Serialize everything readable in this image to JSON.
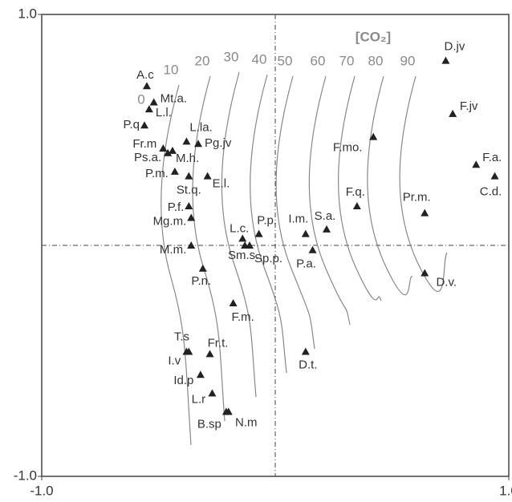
{
  "chart_data": {
    "type": "scatter",
    "marker": "triangle",
    "color": "#222222",
    "labels": [
      "A.c",
      "Mt.a.",
      "L.l.",
      "P.q",
      "Fr.m",
      "Ps.a.",
      "M.h.",
      "L.la.",
      "Pg.jv",
      "P.m.",
      "St.q.",
      "E.l.",
      "P.f.",
      "Mg.m.",
      "M.m.",
      "P.n.",
      "L.c.",
      "Sm.s.",
      "Sp.p.",
      "P.p.",
      "I.m.",
      "S.a.",
      "P.a.",
      "F.m.",
      "T.s",
      "I.v",
      "Fr.t.",
      "Id.p",
      "L.r",
      "B.sp",
      "N.m",
      "D.t.",
      "F.mo.",
      "F.q.",
      "Pr.m.",
      "D.v.",
      "D.jv",
      "F.jv",
      "F.a.",
      "C.d."
    ],
    "x": [
      -0.55,
      -0.52,
      -0.54,
      -0.56,
      -0.48,
      -0.46,
      -0.44,
      -0.38,
      -0.33,
      -0.43,
      -0.37,
      -0.29,
      -0.37,
      -0.36,
      -0.36,
      -0.31,
      -0.14,
      -0.13,
      -0.11,
      -0.07,
      0.13,
      0.22,
      0.16,
      -0.18,
      -0.38,
      -0.37,
      -0.28,
      -0.32,
      -0.27,
      -0.21,
      -0.2,
      0.13,
      0.42,
      0.35,
      0.64,
      0.64,
      0.73,
      0.76,
      0.86,
      0.94
    ],
    "values": [
      0.69,
      0.62,
      0.59,
      0.52,
      0.42,
      0.4,
      0.41,
      0.45,
      0.44,
      0.32,
      0.3,
      0.3,
      0.17,
      0.12,
      0.0,
      -0.1,
      0.03,
      0.0,
      0.0,
      0.05,
      0.05,
      0.07,
      -0.02,
      -0.25,
      -0.46,
      -0.46,
      -0.47,
      -0.56,
      -0.64,
      -0.72,
      -0.72,
      -0.46,
      0.47,
      0.17,
      0.14,
      -0.12,
      0.8,
      0.57,
      0.35,
      0.3
    ],
    "xlim": [
      -1,
      1
    ],
    "ylim": [
      -1,
      1
    ],
    "xticks": [
      {
        "value": -1,
        "label": "-1.0"
      },
      {
        "value": 1,
        "label": "1.0"
      }
    ],
    "yticks": [
      {
        "value": -1,
        "label": "-1.0"
      },
      {
        "value": 1,
        "label": "1.0"
      }
    ],
    "contour_title": "[CO₂]",
    "contour_labels": [
      0,
      10,
      20,
      30,
      40,
      50,
      60,
      70,
      80,
      90
    ]
  }
}
